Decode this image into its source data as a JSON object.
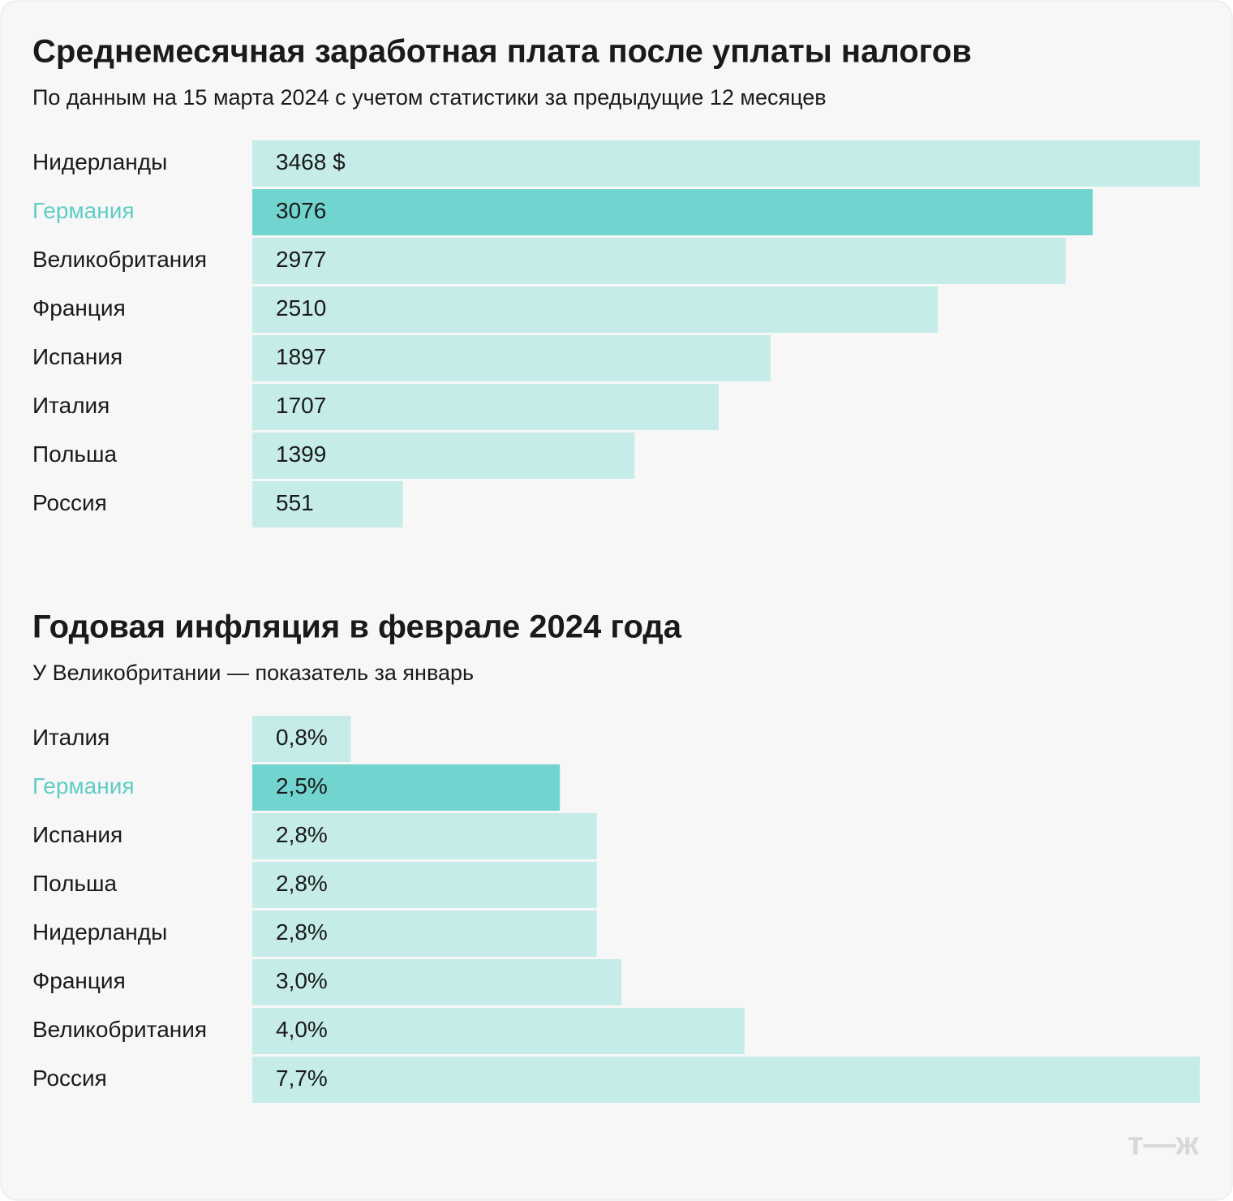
{
  "chart_data": [
    {
      "type": "bar",
      "orientation": "horizontal",
      "title": "Среднемесячная заработная плата после уплаты налогов",
      "subtitle": "По данным на 15 марта 2024 с учетом статистики за предыдущие 12 месяцев",
      "categories": [
        "Нидерланды",
        "Германия",
        "Великобритания",
        "Франция",
        "Испания",
        "Италия",
        "Польша",
        "Россия"
      ],
      "values": [
        3468,
        3076,
        2977,
        2510,
        1897,
        1707,
        1399,
        551
      ],
      "value_labels": [
        "3468 $",
        "3076",
        "2977",
        "2510",
        "1897",
        "1707",
        "1399",
        "551"
      ],
      "colors": [
        "#c5ece8",
        "#72d4cf",
        "#c5ece8",
        "#c5ece8",
        "#c5ece8",
        "#c5ece8",
        "#c5ece8",
        "#c5ece8"
      ],
      "label_colors": [
        "#1a1a1a",
        "#5ecdc6",
        "#1a1a1a",
        "#1a1a1a",
        "#1a1a1a",
        "#1a1a1a",
        "#1a1a1a",
        "#1a1a1a"
      ]
    },
    {
      "type": "bar",
      "orientation": "horizontal",
      "title": "Годовая инфляция в феврале 2024 года",
      "subtitle": "У Великобритании — показатель за январь",
      "categories": [
        "Италия",
        "Германия",
        "Испания",
        "Польша",
        "Нидерланды",
        "Франция",
        "Великобритания",
        "Россия"
      ],
      "values": [
        0.8,
        2.5,
        2.8,
        2.8,
        2.8,
        3.0,
        4.0,
        7.7
      ],
      "value_labels": [
        "0,8%",
        "2,5%",
        "2,8%",
        "2,8%",
        "2,8%",
        "3,0%",
        "4,0%",
        "7,7%"
      ],
      "colors": [
        "#c5ece8",
        "#72d4cf",
        "#c5ece8",
        "#c5ece8",
        "#c5ece8",
        "#c5ece8",
        "#c5ece8",
        "#c5ece8"
      ],
      "label_colors": [
        "#1a1a1a",
        "#5ecdc6",
        "#1a1a1a",
        "#1a1a1a",
        "#1a1a1a",
        "#1a1a1a",
        "#1a1a1a",
        "#1a1a1a"
      ]
    }
  ],
  "logo": "т—ж"
}
